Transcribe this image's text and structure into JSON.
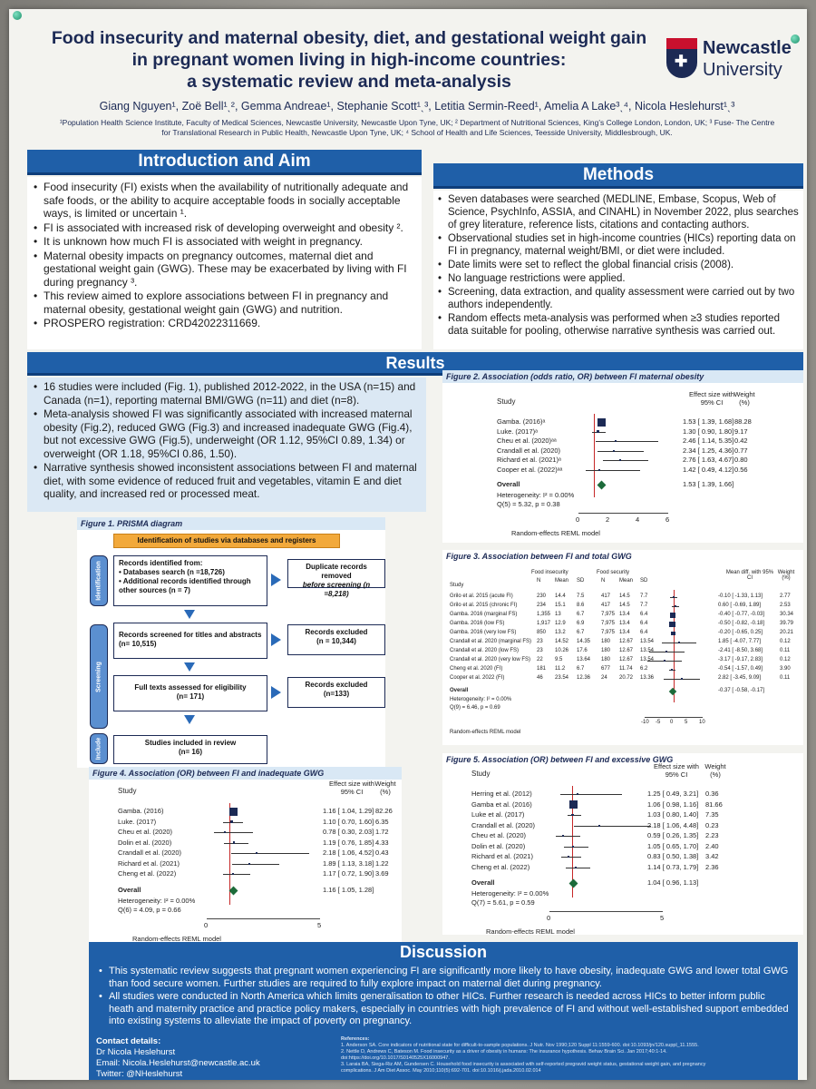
{
  "poster": {
    "title_lines": [
      "Food insecurity and maternal obesity, diet, and gestational weight gain",
      "in pregnant women living in high-income countries:",
      "a systematic review and meta-analysis"
    ],
    "authors": "Giang Nguyen¹, Zoë Bell¹ˎ², Gemma Andreae¹, Stephanie Scott¹ˎ³, Letitia Sermin-Reed¹, Amelia A Lake³ˎ⁴, Nicola Heslehurst¹ˎ³",
    "affiliations": [
      "¹Population Health Science Institute, Faculty of Medical Sciences, Newcastle University, Newcastle Upon Tyne, UK; ² Department of Nutritional Sciences, King’s College London, London, UK; ³ Fuse- The Centre",
      "for Translational Research in Public Health, Newcastle Upon Tyne, UK; ⁴ School of Health and Life Sciences, Teesside University, Middlesbrough, UK."
    ],
    "logo_top": "Newcastle",
    "logo_bottom": "University"
  },
  "intro": {
    "heading": "Introduction and Aim",
    "bullets": [
      "Food insecurity (FI) exists when the availability of nutritionally adequate and safe foods, or the ability to acquire acceptable foods in socially acceptable ways, is limited or uncertain ¹.",
      "FI is associated with increased risk of developing overweight and obesity ².",
      "It is unknown how much FI is associated with weight in pregnancy.",
      "Maternal obesity impacts on pregnancy outcomes, maternal diet and gestational weight gain (GWG). These may be exacerbated by living with FI during pregnancy ³.",
      "This review aimed to explore associations between FI in pregnancy and maternal obesity, gestational weight gain (GWG) and nutrition.",
      "PROSPERO registration: CRD42022311669."
    ]
  },
  "methods": {
    "heading": "Methods",
    "bullets": [
      "Seven databases were searched (MEDLINE, Embase, Scopus, Web of Science, PsychInfo, ASSIA, and CINAHL) in November 2022, plus searches of grey literature, reference lists, citations and contacting authors.",
      "Observational studies set in high-income countries (HICs) reporting data on FI in pregnancy, maternal weight/BMI, or diet were included.",
      "Date limits were set to reflect the global financial crisis (2008).",
      "No language restrictions were applied.",
      "Screening, data extraction, and quality assessment were carried out by two authors independently.",
      "Random effects meta-analysis was performed when ≥3 studies reported data suitable for pooling, otherwise narrative synthesis was carried out."
    ]
  },
  "results": {
    "heading": "Results",
    "bullets": [
      "16 studies were included (Fig. 1), published 2012-2022, in the USA (n=15) and Canada (n=1), reporting maternal BMI/GWG (n=11) and diet (n=8).",
      "Meta-analysis showed FI was significantly associated with increased maternal obesity (Fig.2), reduced GWG (Fig.3) and increased inadequate GWG (Fig.4), but not  excessive GWG (Fig.5), underweight (OR 1.12, 95%CI 0.89, 1.34) or overweight (OR 1.18, 95%CI 0.86, 1.50).",
      "Narrative synthesis showed inconsistent associations between FI and maternal diet, with some evidence of reduced fruit and vegetables, vitamin E and diet quality, and increased red or processed meat."
    ]
  },
  "prisma": {
    "caption": "Figure 1. PRISMA diagram",
    "header": "Identification of studies via databases and registers",
    "side_labels": [
      "Identification",
      "Screening",
      "Include"
    ],
    "identified_title": "Records identified from:",
    "identified_items": [
      "Databases search (n =18,726)",
      "Additional records identified through other sources (n = 7)"
    ],
    "duplicates_line1": "Duplicate records removed",
    "duplicates_line2": "before screening (n =8,218)",
    "screened": "Records screened for titles and abstracts (n= 10,515)",
    "excluded1_line1": "Records excluded",
    "excluded1_line2": "(n = 10,344)",
    "fulltext_line1": "Full texts assessed for eligibility",
    "fulltext_line2": "(n= 171)",
    "excluded2_line1": "Records excluded",
    "excluded2_line2": "(n=133)",
    "included_line1": "Studies included in review",
    "included_line2": "(n= 16)"
  },
  "fig2": {
    "caption": "Figure 2. Association (odds ratio, OR) between FI maternal obesity",
    "col_study": "Study",
    "col_effect": "Effect size with 95% CI",
    "col_weight": "Weight (%)",
    "rows": [
      {
        "study": "Gamba. (2016)ᵃ",
        "effect": "1.53 [ 1.39,  1.68]",
        "weight": "88.28"
      },
      {
        "study": "Luke. (2017)ᵃ",
        "effect": "1.30 [ 0.90,  1.80]",
        "weight": "9.17"
      },
      {
        "study": "Cheu et al. (2020)ᵃᵃ",
        "effect": "2.46 [ 1.14,  5.35]",
        "weight": "0.42"
      },
      {
        "study": "Crandall et al. (2020)",
        "effect": "2.34 [ 1.25,  4.36]",
        "weight": "0.77"
      },
      {
        "study": "Richard et al. (2021)ᵃ",
        "effect": "2.76 [ 1.63,  4.67]",
        "weight": "0.80"
      },
      {
        "study": "Cooper et al. (2022)ᵃᵃ",
        "effect": "1.42 [ 0.49,  4.12]",
        "weight": "0.56"
      }
    ],
    "overall_label": "Overall",
    "overall_effect": "1.53 [ 1.39,  1.66]",
    "heterogeneity": "Heterogeneity: I² = 0.00%",
    "q": "Q(5) = 5.32, p = 0.38",
    "model": "Random-effects REML model",
    "ticks": [
      "0",
      "2",
      "4",
      "6"
    ]
  },
  "fig3": {
    "caption": "Figure 3. Association between FI and total GWG",
    "group_fi": "Food insecurity",
    "group_fs": "Food security",
    "sub_cols": [
      "N",
      "Mean",
      "SD",
      "N",
      "Mean",
      "SD"
    ],
    "col_study": "Study",
    "col_effect": "Mean diff. with 95% CI",
    "col_weight": "Weight (%)",
    "rows": [
      {
        "study": "Grilo et al. 2015 (acute FI)",
        "v": [
          "230",
          "14.4",
          "7.5",
          "417",
          "14.5",
          "7.7"
        ],
        "effect": "-0.10 [ -1.33,  1.13]",
        "weight": "2.77"
      },
      {
        "study": "Grilo et al. 2015 (chronic FI)",
        "v": [
          "234",
          "15.1",
          "8.6",
          "417",
          "14.5",
          "7.7"
        ],
        "effect": "0.60 [ -0.69,  1.89]",
        "weight": "2.53"
      },
      {
        "study": "Gamba. 2016 (marginal FS)",
        "v": [
          "1,355",
          "13",
          "6.7",
          "7,975",
          "13.4",
          "6.4"
        ],
        "effect": "-0.40 [ -0.77, -0.03]",
        "weight": "30.34"
      },
      {
        "study": "Gamba. 2016 (low FS)",
        "v": [
          "1,917",
          "12.9",
          "6.9",
          "7,975",
          "13.4",
          "6.4"
        ],
        "effect": "-0.50 [ -0.82, -0.18]",
        "weight": "39.79"
      },
      {
        "study": "Gamba. 2016 (very low FS)",
        "v": [
          "850",
          "13.2",
          "6.7",
          "7,975",
          "13.4",
          "6.4"
        ],
        "effect": "-0.20 [ -0.65,  0.25]",
        "weight": "20.21"
      },
      {
        "study": "Crandall et al. 2020 (marginal FS)",
        "v": [
          "23",
          "14.52",
          "14.35",
          "180",
          "12.67",
          "13.54"
        ],
        "effect": "1.85 [ -4.07,  7.77]",
        "weight": "0.12"
      },
      {
        "study": "Crandall et al. 2020 (low FS)",
        "v": [
          "23",
          "10.26",
          "17.6",
          "180",
          "12.67",
          "13.54"
        ],
        "effect": "-2.41 [ -8.50,  3.68]",
        "weight": "0.11"
      },
      {
        "study": "Crandall et al. 2020 (very low FS)",
        "v": [
          "22",
          "9.5",
          "13.64",
          "180",
          "12.67",
          "13.54"
        ],
        "effect": "-3.17 [ -9.17,  2.83]",
        "weight": "0.12"
      },
      {
        "study": "Cheng et al. 2020 (FI)",
        "v": [
          "181",
          "11.2",
          "6.7",
          "677",
          "11.74",
          "6.2"
        ],
        "effect": "-0.54 [ -1.57,  0.49]",
        "weight": "3.90"
      },
      {
        "study": "Cooper et al. 2022 (FI)",
        "v": [
          "46",
          "23.54",
          "12.36",
          "24",
          "20.72",
          "13.36"
        ],
        "effect": "2.82 [ -3.45,  9.09]",
        "weight": "0.11"
      }
    ],
    "overall_label": "Overall",
    "overall_effect": "-0.37 [ -0.58, -0.17]",
    "heterogeneity": "Heterogeneity: I² = 0.00%",
    "q": "Q(9) = 6.46, p = 0.69",
    "model": "Random-effects REML model",
    "ticks": [
      "-10",
      "-5",
      "0",
      "5",
      "10"
    ]
  },
  "fig4": {
    "caption": "Figure 4. Association (OR) between FI and inadequate GWG",
    "col_study": "Study",
    "col_effect": "Effect size with 95% CI",
    "col_weight": "Weight (%)",
    "rows": [
      {
        "study": "Gamba. (2016)",
        "effect": "1.16 [ 1.04,  1.29]",
        "weight": "82.26"
      },
      {
        "study": "Luke. (2017)",
        "effect": "1.10 [ 0.70,  1.60]",
        "weight": "6.35"
      },
      {
        "study": "Cheu et al. (2020)",
        "effect": "0.78 [ 0.30,  2.03]",
        "weight": "1.72"
      },
      {
        "study": "Dolin et al. (2020)",
        "effect": "1.19 [ 0.76,  1.85]",
        "weight": "4.33"
      },
      {
        "study": "Crandall et al. (2020)",
        "effect": "2.18 [ 1.06,  4.52]",
        "weight": "0.43"
      },
      {
        "study": "Richard et al. (2021)",
        "effect": "1.89 [ 1.13,  3.18]",
        "weight": "1.22"
      },
      {
        "study": "Cheng et al. (2022)",
        "effect": "1.17 [ 0.72,  1.90]",
        "weight": "3.69"
      }
    ],
    "overall_label": "Overall",
    "overall_effect": "1.16 [ 1.05,  1.28]",
    "heterogeneity": "Heterogeneity: I² = 0.00%",
    "q": "Q(6) = 4.09, p = 0.66",
    "model": "Random-effects REML model",
    "ticks": [
      "0",
      "5"
    ]
  },
  "fig5": {
    "caption": "Figure 5. Association (OR) between FI and excessive GWG",
    "col_study": "Study",
    "col_effect": "Effect size with 95% CI",
    "col_weight": "Weight (%)",
    "rows": [
      {
        "study": "Herring et al. (2012)",
        "effect": "1.25 [ 0.49,  3.21]",
        "weight": "0.36"
      },
      {
        "study": "Gamba et al. (2016)",
        "effect": "1.06 [ 0.98,  1.16]",
        "weight": "81.66"
      },
      {
        "study": "Luke et al. (2017)",
        "effect": "1.03 [ 0.80,  1.40]",
        "weight": "7.35"
      },
      {
        "study": "Crandall et al. (2020)",
        "effect": "2.18 [ 1.06,  4.48]",
        "weight": "0.23"
      },
      {
        "study": "Cheu et al. (2020)",
        "effect": "0.59 [ 0.26,  1.35]",
        "weight": "2.23"
      },
      {
        "study": "Dolin et al. (2020)",
        "effect": "1.05 [ 0.65,  1.70]",
        "weight": "2.40"
      },
      {
        "study": "Richard et al. (2021)",
        "effect": "0.83 [ 0.50,  1.38]",
        "weight": "3.42"
      },
      {
        "study": "Cheng et al. (2022)",
        "effect": "1.14 [ 0.73,  1.79]",
        "weight": "2.36"
      }
    ],
    "overall_label": "Overall",
    "overall_effect": "1.04 [ 0.96,  1.13]",
    "heterogeneity": "Heterogeneity: I² = 0.00%",
    "q": "Q(7) = 5.61, p = 0.59",
    "model": "Random-effects REML model",
    "ticks": [
      "0",
      "5"
    ]
  },
  "discussion": {
    "heading": "Discussion",
    "bullets": [
      "This systematic review suggests that pregnant women experiencing FI are significantly more likely to have obesity, inadequate GWG and lower total GWG than food secure women. Further studies are required to fully explore impact on maternal diet during pregnancy.",
      "All studies were conducted in North America which limits generalisation to other HICs. Further research is needed across HICs to better inform public heath and maternity practice and practice policy makers, especially in countries with high prevalence of FI and without well-established support embedded into existing systems to alleviate the impact of poverty on pregnancy."
    ]
  },
  "contact": {
    "heading": "Contact details:",
    "name": "Dr Nicola Heslehurst",
    "email": "Email: Nicola.Heslehurst@newcastle.ac.uk",
    "twitter": "Twitter: @NHeslehurst"
  },
  "references": {
    "heading": "References:",
    "items": [
      "1.  Anderson SA. Core indicators of nutritional state for difficult-to-sample populations. J Nutr. Nov 1990;120 Suppl 11:1559-600. doi:10.1093/jn/120.suppl_11.1555.",
      "2.  Nettle D, Andrews C, Bateson M. Food insecurity as a driver of obesity in humans: The insurance hypothesis. Behav Brain Sci. Jan 2017;40:1-14.",
      "    doi:https://doi.org/10.1017/S0140525X16000947.",
      "3.  Laraia BA, Siega-Riz AM, Gundersen C. Household food insecurity is associated with self-reported pregravid weight status, gestational weight gain, and pregnancy",
      "    complications. J Am Diet Assoc. May 2010;110(5):692-701. doi:10.1016/j.jada.2010.02.014"
    ]
  },
  "colors": {
    "band": "#1f5fa8",
    "navy": "#1c2a55",
    "highlight": "#d9e8f5",
    "diamond": "#1d6b3a",
    "null_line": "#c62828"
  }
}
